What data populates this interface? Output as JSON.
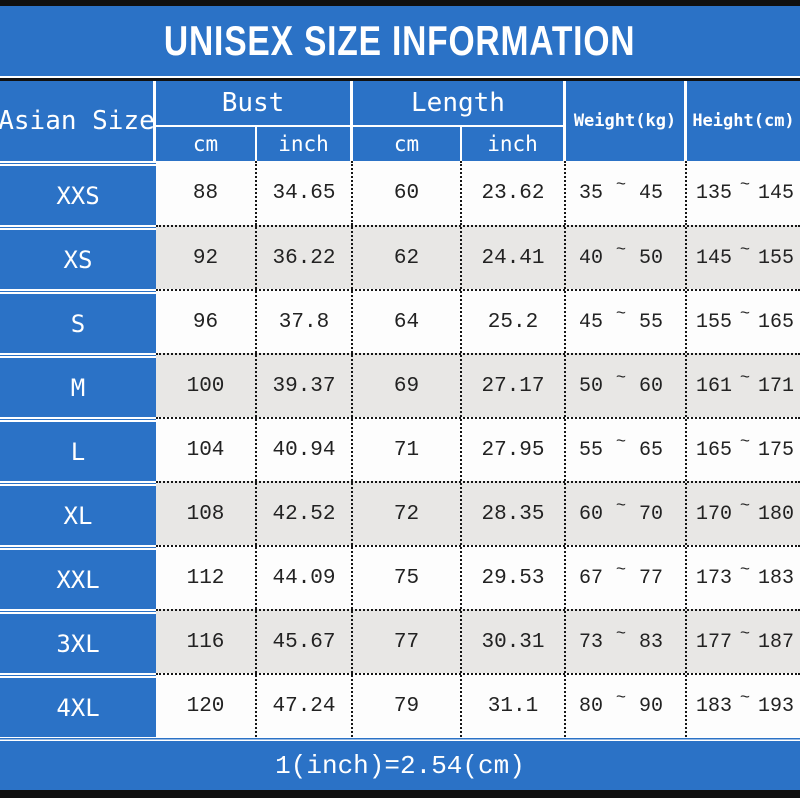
{
  "title": "UNISEX SIZE INFORMATION",
  "footer_note": "1(inch)=2.54(cm)",
  "tilde": "~",
  "header": {
    "row_label": "Asian Size",
    "bust": "Bust",
    "length": "Length",
    "cm": "cm",
    "inch": "inch",
    "weight": "Weight(kg)",
    "height": "Height(cm)"
  },
  "rows": [
    {
      "size": "XXS",
      "bust_cm": "88",
      "bust_inch": "34.65",
      "length_cm": "60",
      "length_inch": "23.62",
      "weight_min": "35",
      "weight_max": "45",
      "height_min": "135",
      "height_max": "145"
    },
    {
      "size": "XS",
      "bust_cm": "92",
      "bust_inch": "36.22",
      "length_cm": "62",
      "length_inch": "24.41",
      "weight_min": "40",
      "weight_max": "50",
      "height_min": "145",
      "height_max": "155"
    },
    {
      "size": "S",
      "bust_cm": "96",
      "bust_inch": "37.8",
      "length_cm": "64",
      "length_inch": "25.2",
      "weight_min": "45",
      "weight_max": "55",
      "height_min": "155",
      "height_max": "165"
    },
    {
      "size": "M",
      "bust_cm": "100",
      "bust_inch": "39.37",
      "length_cm": "69",
      "length_inch": "27.17",
      "weight_min": "50",
      "weight_max": "60",
      "height_min": "161",
      "height_max": "171"
    },
    {
      "size": "L",
      "bust_cm": "104",
      "bust_inch": "40.94",
      "length_cm": "71",
      "length_inch": "27.95",
      "weight_min": "55",
      "weight_max": "65",
      "height_min": "165",
      "height_max": "175"
    },
    {
      "size": "XL",
      "bust_cm": "108",
      "bust_inch": "42.52",
      "length_cm": "72",
      "length_inch": "28.35",
      "weight_min": "60",
      "weight_max": "70",
      "height_min": "170",
      "height_max": "180"
    },
    {
      "size": "XXL",
      "bust_cm": "112",
      "bust_inch": "44.09",
      "length_cm": "75",
      "length_inch": "29.53",
      "weight_min": "67",
      "weight_max": "77",
      "height_min": "173",
      "height_max": "183"
    },
    {
      "size": "3XL",
      "bust_cm": "116",
      "bust_inch": "45.67",
      "length_cm": "77",
      "length_inch": "30.31",
      "weight_min": "73",
      "weight_max": "83",
      "height_min": "177",
      "height_max": "187"
    },
    {
      "size": "4XL",
      "bust_cm": "120",
      "bust_inch": "47.24",
      "length_cm": "79",
      "length_inch": "31.1",
      "weight_min": "80",
      "weight_max": "90",
      "height_min": "183",
      "height_max": "193"
    }
  ],
  "colors": {
    "blue": "#2b72c6",
    "row_white": "#fdfdfd",
    "row_gray": "#e8e7e5",
    "text_dark": "#222222",
    "border_black": "#101010",
    "grid_dot": "#161616",
    "white": "#ffffff"
  },
  "chart_data": {
    "type": "table",
    "title": "UNISEX SIZE INFORMATION",
    "columns": [
      "Asian Size",
      "Bust cm",
      "Bust inch",
      "Length cm",
      "Length inch",
      "Weight(kg)",
      "Height(cm)"
    ],
    "rows": [
      [
        "XXS",
        "88",
        "34.65",
        "60",
        "23.62",
        "35 ~ 45",
        "135 ~ 145"
      ],
      [
        "XS",
        "92",
        "36.22",
        "62",
        "24.41",
        "40 ~ 50",
        "145 ~ 155"
      ],
      [
        "S",
        "96",
        "37.8",
        "64",
        "25.2",
        "45 ~ 55",
        "155 ~ 165"
      ],
      [
        "M",
        "100",
        "39.37",
        "69",
        "27.17",
        "50 ~ 60",
        "161 ~ 171"
      ],
      [
        "L",
        "104",
        "40.94",
        "71",
        "27.95",
        "55 ~ 65",
        "165 ~ 175"
      ],
      [
        "XL",
        "108",
        "42.52",
        "72",
        "28.35",
        "60 ~ 70",
        "170 ~ 180"
      ],
      [
        "XXL",
        "112",
        "44.09",
        "75",
        "29.53",
        "67 ~ 77",
        "173 ~ 183"
      ],
      [
        "3XL",
        "116",
        "45.67",
        "77",
        "30.31",
        "73 ~ 83",
        "177 ~ 187"
      ],
      [
        "4XL",
        "120",
        "47.24",
        "79",
        "31.1",
        "80 ~ 90",
        "183 ~ 193"
      ]
    ],
    "note": "1(inch)=2.54(cm)",
    "layout": "header band blue with white text; left size column blue; data rows alternate white/gray; dotted black grid lines"
  }
}
